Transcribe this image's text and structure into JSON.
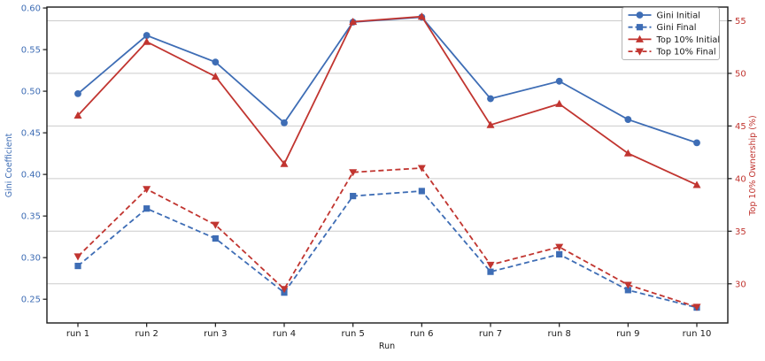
{
  "chart_data": {
    "type": "line",
    "xlabel": "Run",
    "ylabel_left": "Gini Coefficient",
    "ylabel_right": "Top 10% Ownership (%)",
    "categories": [
      "run 1",
      "run 2",
      "run 3",
      "run 4",
      "run 5",
      "run 6",
      "run 7",
      "run 8",
      "run 9",
      "run 10"
    ],
    "series": [
      {
        "name": "Gini Initial",
        "axis": "left",
        "style": "solid",
        "marker": "circle",
        "color": "#3e6db5",
        "values": [
          0.497,
          0.567,
          0.535,
          0.462,
          0.583,
          0.589,
          0.491,
          0.512,
          0.466,
          0.438
        ]
      },
      {
        "name": "Gini Final",
        "axis": "left",
        "style": "dashed",
        "marker": "square",
        "color": "#3e6db5",
        "values": [
          0.29,
          0.359,
          0.323,
          0.258,
          0.374,
          0.38,
          0.283,
          0.304,
          0.261,
          0.24
        ]
      },
      {
        "name": "Top 10% Initial",
        "axis": "right",
        "style": "solid",
        "marker": "triangle-up",
        "color": "#c13530",
        "values": [
          46.0,
          53.0,
          49.7,
          41.4,
          54.9,
          55.4,
          45.1,
          47.1,
          42.4,
          39.4
        ]
      },
      {
        "name": "Top 10% Final",
        "axis": "right",
        "style": "dashed",
        "marker": "triangle-down",
        "color": "#c13530",
        "values": [
          32.6,
          39.0,
          35.6,
          29.5,
          40.6,
          41.0,
          31.8,
          33.5,
          29.9,
          27.8
        ]
      }
    ],
    "left_ticks": [
      0.25,
      0.3,
      0.35,
      0.4,
      0.45,
      0.5,
      0.55,
      0.6
    ],
    "right_ticks": [
      30,
      35,
      40,
      45,
      50,
      55
    ],
    "ylim_left": [
      0.2215,
      0.6011
    ],
    "ylim_right": [
      26.28,
      56.3
    ],
    "grid": "horizontal gridlines aligned to right-axis ticks",
    "legend_position": "upper right",
    "legend_labels": [
      "Gini Initial",
      "Gini Final",
      "Top 10% Initial",
      "Top 10% Final"
    ]
  },
  "colors": {
    "left_axis": "#3e6db5",
    "right_axis": "#c13530",
    "grid": "#cccccc",
    "spine": "#1a1a1a",
    "tick_text_x": "#1a1a1a",
    "legend_border": "#b3b3b3",
    "legend_bg": "#ffffff",
    "background": "#ffffff"
  }
}
